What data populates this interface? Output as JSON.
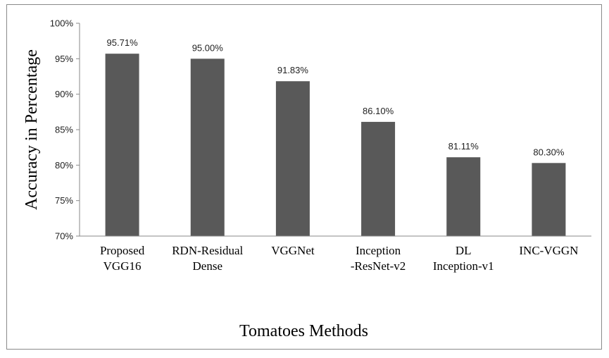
{
  "chart_data": {
    "type": "bar",
    "title": "",
    "xlabel": "Tomatoes Methods",
    "ylabel": "Accuracy in Percentage",
    "ylim": [
      70,
      100
    ],
    "yticks": [
      "70%",
      "75%",
      "80%",
      "85%",
      "90%",
      "95%",
      "100%"
    ],
    "grid": false,
    "categories": [
      [
        "Proposed",
        "VGG16"
      ],
      [
        "RDN-Residual",
        "Dense"
      ],
      [
        "VGGNet"
      ],
      [
        "Inception",
        "-ResNet-v2"
      ],
      [
        "DL",
        "Inception-v1"
      ],
      [
        "INC-VGGN"
      ]
    ],
    "values": [
      95.71,
      95.0,
      91.83,
      86.1,
      81.11,
      80.3
    ],
    "data_labels": [
      "95.71%",
      "95.00%",
      "91.83%",
      "86.10%",
      "81.11%",
      "80.30%"
    ],
    "bar_color": "#595959"
  }
}
